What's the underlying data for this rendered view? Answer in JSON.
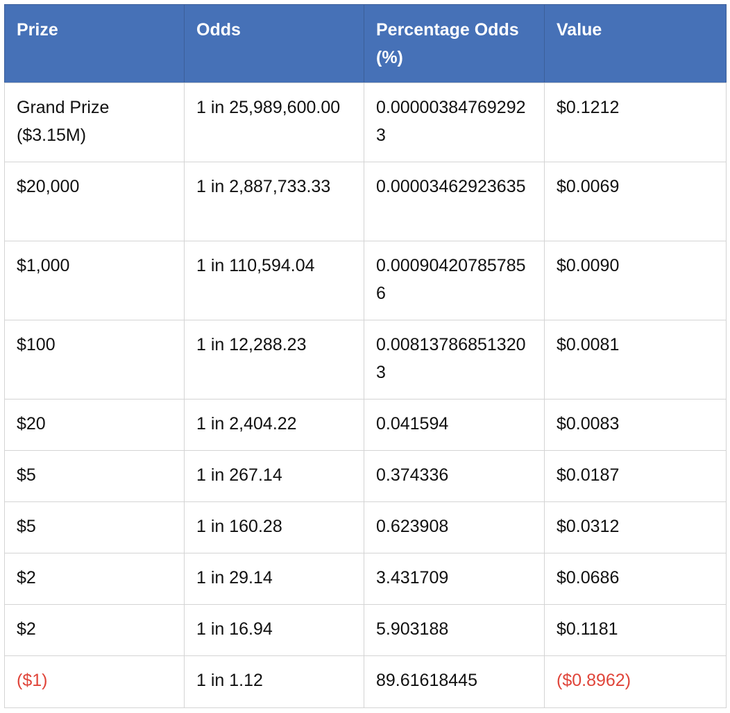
{
  "table": {
    "headers": [
      "Prize",
      "Odds",
      "Percentage Odds (%)",
      "Value"
    ],
    "accent_color": "#4671b7",
    "negative_color": "#e0453a",
    "rows": [
      {
        "prize": "Grand Prize ($3.15M)",
        "odds": "1 in 25,989,600.00",
        "pct": "0.000003847692923",
        "value": "$0.1212"
      },
      {
        "prize": "$20,000",
        "odds": "1 in 2,887,733.33",
        "pct": "0.00003462923635",
        "value": "$0.0069"
      },
      {
        "prize": "$1,000",
        "odds": "1 in 110,594.04",
        "pct": "0.000904207857856",
        "value": "$0.0090"
      },
      {
        "prize": "$100",
        "odds": "1 in 12,288.23",
        "pct": "0.008137868513203",
        "value": "$0.0081"
      },
      {
        "prize": "$20",
        "odds": "1 in 2,404.22",
        "pct": "0.041594",
        "value": "$0.0083"
      },
      {
        "prize": "$5",
        "odds": "1 in 267.14",
        "pct": "0.374336",
        "value": "$0.0187"
      },
      {
        "prize": "$5",
        "odds": "1 in 160.28",
        "pct": "0.623908",
        "value": "$0.0312"
      },
      {
        "prize": "$2",
        "odds": "1 in 29.14",
        "pct": "3.431709",
        "value": "$0.0686"
      },
      {
        "prize": "$2",
        "odds": "1 in 16.94",
        "pct": "5.903188",
        "value": "$0.1181"
      },
      {
        "prize": "($1)",
        "odds": "1 in 1.12",
        "pct": "89.61618445",
        "value": "($0.8962)"
      }
    ]
  }
}
